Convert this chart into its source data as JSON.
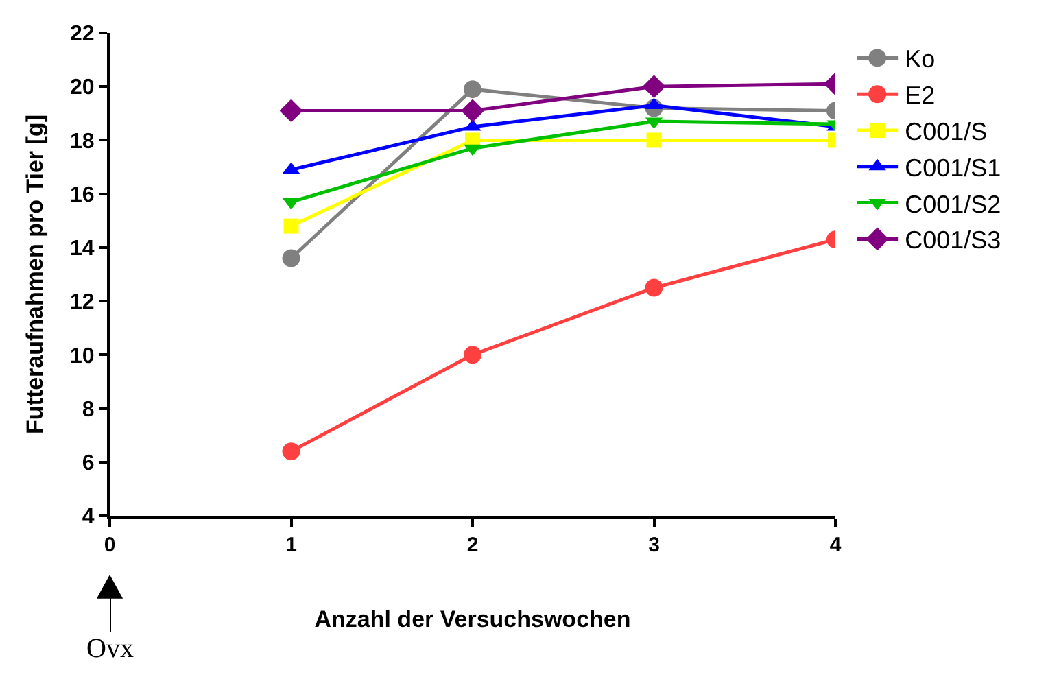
{
  "chart_data": {
    "type": "line",
    "xlabel": "Anzahl der Versuchswochen",
    "ylabel": "Futteraufnahmen pro Tier [g]",
    "x": [
      1,
      2,
      3,
      4
    ],
    "xlim": [
      0,
      4
    ],
    "xticks": [
      0,
      1,
      2,
      3,
      4
    ],
    "ylim": [
      4,
      22
    ],
    "yticks": [
      4,
      6,
      8,
      10,
      12,
      14,
      16,
      18,
      20,
      22
    ],
    "legend": "top right",
    "line_style": "solid",
    "series": [
      {
        "name": "Ko",
        "color": "#808080",
        "marker": "circle",
        "values": [
          13.6,
          19.9,
          19.2,
          19.1
        ]
      },
      {
        "name": "E2",
        "color": "#ff4040",
        "marker": "circle",
        "values": [
          6.4,
          10.0,
          12.5,
          14.3
        ]
      },
      {
        "name": "C001/S",
        "color": "#ffff00",
        "marker": "square",
        "values": [
          14.8,
          18.0,
          18.0,
          18.0
        ]
      },
      {
        "name": "C001/S1",
        "color": "#0000ff",
        "marker": "triangle",
        "values": [
          16.9,
          18.5,
          19.3,
          18.5
        ]
      },
      {
        "name": "C001/S2",
        "color": "#00c000",
        "marker": "triangle-down",
        "values": [
          15.7,
          17.7,
          18.7,
          18.6
        ]
      },
      {
        "name": "C001/S3",
        "color": "#800080",
        "marker": "diamond",
        "values": [
          19.1,
          19.1,
          20.0,
          20.1
        ]
      }
    ],
    "annotations": [
      "Ovx"
    ]
  }
}
